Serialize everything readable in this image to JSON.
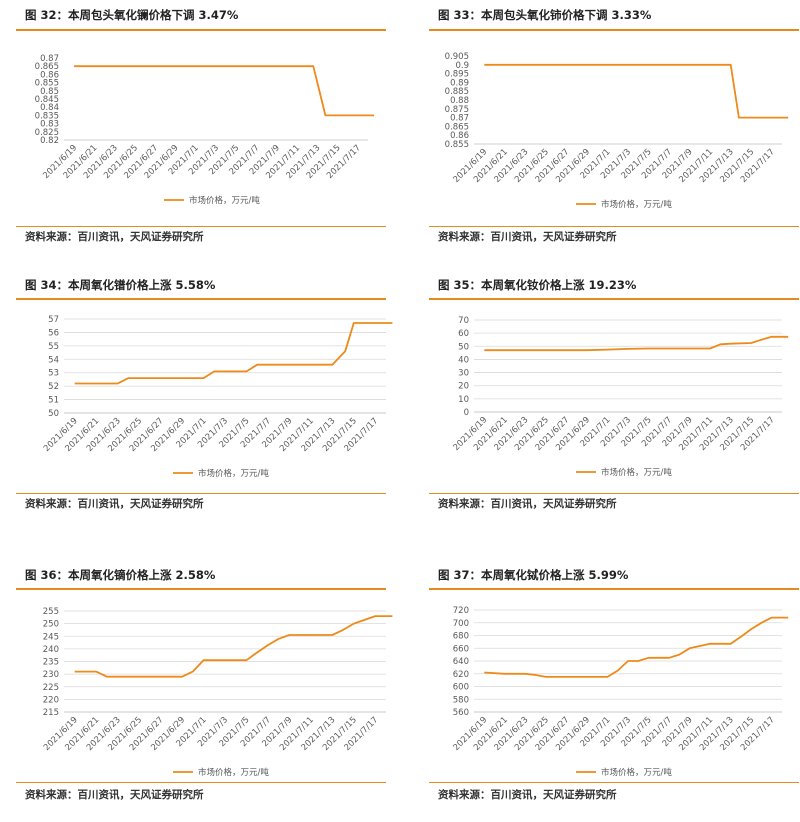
{
  "source_text": "资料来源：百川资讯，天风证券研究所",
  "legend_label": "市场价格，万元/吨",
  "line_color": "#ed8a1a",
  "rule_color": "#e58a1f",
  "grid_color": "#d9d9d9",
  "panels": [
    {
      "title": "图 32：本周包头氧化镧价格下调 3.47%",
      "chart_data": {
        "type": "line",
        "x": [
          "2021/6/19",
          "2021/6/21",
          "2021/6/23",
          "2021/6/25",
          "2021/6/27",
          "2021/6/29",
          "2021/7/1",
          "2021/7/3",
          "2021/7/5",
          "2021/7/7",
          "2021/7/9",
          "2021/7/11",
          "2021/7/13",
          "2021/7/15",
          "2021/7/17"
        ],
        "x_ticks": [
          "2021/6/19",
          "2021/6/21",
          "2021/6/23",
          "2021/6/25",
          "2021/6/27",
          "2021/6/29",
          "2021/7/1",
          "2021/7/3",
          "2021/7/5",
          "2021/7/7",
          "2021/7/9",
          "2021/7/11",
          "2021/7/13",
          "2021/7/15",
          "2021/7/17"
        ],
        "y_ticks": [
          "0.87",
          "0.865",
          "0.86",
          "0.855",
          "0.85",
          "0.845",
          "0.84",
          "0.835",
          "0.83",
          "0.825",
          "0.82"
        ],
        "ylim": [
          0.82,
          0.87
        ],
        "grid": false,
        "series": [
          {
            "name": "市场价格，万元/吨",
            "x": [
              0,
              1,
              2,
              3,
              4,
              5,
              6,
              7,
              8,
              9,
              10,
              11,
              11.8,
              12.4,
              13,
              14,
              14.8
            ],
            "values": [
              0.865,
              0.865,
              0.865,
              0.865,
              0.865,
              0.865,
              0.865,
              0.865,
              0.865,
              0.865,
              0.865,
              0.865,
              0.865,
              0.835,
              0.835,
              0.835,
              0.835
            ]
          }
        ]
      }
    },
    {
      "title": "图 33：本周包头氧化铈价格下调 3.33%",
      "chart_data": {
        "type": "line",
        "x": [
          "2021/6/19",
          "2021/6/21",
          "2021/6/23",
          "2021/6/25",
          "2021/6/27",
          "2021/6/29",
          "2021/7/1",
          "2021/7/3",
          "2021/7/5",
          "2021/7/7",
          "2021/7/9",
          "2021/7/11",
          "2021/7/13",
          "2021/7/15",
          "2021/7/17"
        ],
        "x_ticks": [
          "2021/6/19",
          "2021/6/21",
          "2021/6/23",
          "2021/6/25",
          "2021/6/27",
          "2021/6/29",
          "2021/7/1",
          "2021/7/3",
          "2021/7/5",
          "2021/7/7",
          "2021/7/9",
          "2021/7/11",
          "2021/7/13",
          "2021/7/15",
          "2021/7/17"
        ],
        "y_ticks": [
          "0.905",
          "0.9",
          "0.895",
          "0.89",
          "0.885",
          "0.88",
          "0.875",
          "0.87",
          "0.865",
          "0.86",
          "0.855"
        ],
        "ylim": [
          0.855,
          0.905
        ],
        "grid": false,
        "series": [
          {
            "name": "市场价格，万元/吨",
            "x": [
              0,
              1,
              2,
              3,
              4,
              5,
              6,
              7,
              8,
              9,
              10,
              11,
              12,
              12.4,
              13,
              14,
              14.8
            ],
            "values": [
              0.9,
              0.9,
              0.9,
              0.9,
              0.9,
              0.9,
              0.9,
              0.9,
              0.9,
              0.9,
              0.9,
              0.9,
              0.9,
              0.87,
              0.87,
              0.87,
              0.87
            ]
          }
        ]
      }
    },
    {
      "title": "图 34：本周氧化镨价格上涨 5.58%",
      "chart_data": {
        "type": "line",
        "x": [
          "2021/6/19",
          "2021/6/21",
          "2021/6/23",
          "2021/6/25",
          "2021/6/27",
          "2021/6/29",
          "2021/7/1",
          "2021/7/3",
          "2021/7/5",
          "2021/7/7",
          "2021/7/9",
          "2021/7/11",
          "2021/7/13",
          "2021/7/15",
          "2021/7/17"
        ],
        "x_ticks": [
          "2021/6/19",
          "2021/6/21",
          "2021/6/23",
          "2021/6/25",
          "2021/6/27",
          "2021/6/29",
          "2021/7/1",
          "2021/7/3",
          "2021/7/5",
          "2021/7/7",
          "2021/7/9",
          "2021/7/11",
          "2021/7/13",
          "2021/7/15",
          "2021/7/17"
        ],
        "y_ticks": [
          "57",
          "56",
          "55",
          "54",
          "53",
          "52",
          "51",
          "50"
        ],
        "ylim": [
          50,
          57
        ],
        "grid": true,
        "series": [
          {
            "name": "市场价格，万元/吨",
            "x": [
              0,
              1,
              2,
              2.5,
              3,
              4,
              5,
              6,
              6.5,
              7,
              8,
              8.5,
              9,
              10,
              11,
              12,
              12.6,
              13,
              13.5,
              14,
              14.8
            ],
            "values": [
              52.2,
              52.2,
              52.2,
              52.6,
              52.6,
              52.6,
              52.6,
              52.6,
              53.1,
              53.1,
              53.1,
              53.6,
              53.6,
              53.6,
              53.6,
              53.6,
              54.6,
              56.7,
              56.7,
              56.7,
              56.7
            ]
          }
        ]
      }
    },
    {
      "title": "图 35：本周氧化钕价格上涨 19.23%",
      "chart_data": {
        "type": "line",
        "x": [
          "2021/6/19",
          "2021/6/21",
          "2021/6/23",
          "2021/6/25",
          "2021/6/27",
          "2021/6/29",
          "2021/7/1",
          "2021/7/3",
          "2021/7/5",
          "2021/7/7",
          "2021/7/9",
          "2021/7/11",
          "2021/7/13",
          "2021/7/15",
          "2021/7/17"
        ],
        "x_ticks": [
          "2021/6/19",
          "2021/6/21",
          "2021/6/23",
          "2021/6/25",
          "2021/6/27",
          "2021/6/29",
          "2021/7/1",
          "2021/7/3",
          "2021/7/5",
          "2021/7/7",
          "2021/7/9",
          "2021/7/11",
          "2021/7/13",
          "2021/7/15",
          "2021/7/17"
        ],
        "y_ticks": [
          "70",
          "60",
          "50",
          "40",
          "30",
          "20",
          "10",
          "0"
        ],
        "ylim": [
          0,
          70
        ],
        "grid": true,
        "series": [
          {
            "name": "市场价格，万元/吨",
            "x": [
              0,
              1,
              2,
              3,
              4,
              5,
              6,
              7,
              8,
              9,
              10,
              11,
              11.5,
              12,
              13,
              13.5,
              14,
              14.8
            ],
            "values": [
              47,
              47,
              47,
              47,
              47,
              47,
              47.5,
              48,
              48.3,
              48.3,
              48.3,
              48.3,
              51.5,
              52,
              52.5,
              55,
              57.2,
              57.2
            ]
          }
        ]
      }
    },
    {
      "title": "图 36：本周氧化镝价格上涨 2.58%",
      "chart_data": {
        "type": "line",
        "x": [
          "2021/6/19",
          "2021/6/21",
          "2021/6/23",
          "2021/6/25",
          "2021/6/27",
          "2021/6/29",
          "2021/7/1",
          "2021/7/3",
          "2021/7/5",
          "2021/7/7",
          "2021/7/9",
          "2021/7/11",
          "2021/7/13",
          "2021/7/15",
          "2021/7/17"
        ],
        "x_ticks": [
          "2021/6/19",
          "2021/6/21",
          "2021/6/23",
          "2021/6/25",
          "2021/6/27",
          "2021/6/29",
          "2021/7/1",
          "2021/7/3",
          "2021/7/5",
          "2021/7/7",
          "2021/7/9",
          "2021/7/11",
          "2021/7/13",
          "2021/7/15",
          "2021/7/17"
        ],
        "y_ticks": [
          "255",
          "250",
          "245",
          "240",
          "235",
          "230",
          "225",
          "220",
          "215"
        ],
        "ylim": [
          215,
          255
        ],
        "grid": true,
        "series": [
          {
            "name": "市场价格，万元/吨",
            "x": [
              0,
              1,
              1.5,
              2,
              3,
              4,
              5,
              5.5,
              6,
              6.3,
              7,
              8,
              8.4,
              9,
              9.5,
              10,
              11,
              12,
              12.5,
              13,
              14,
              14.8
            ],
            "values": [
              231,
              231,
              229,
              229,
              229,
              229,
              229,
              231,
              235.5,
              235.5,
              235.5,
              235.5,
              238,
              241.5,
              244,
              245.5,
              245.5,
              245.5,
              247.5,
              250,
              253,
              253
            ]
          }
        ]
      }
    },
    {
      "title": "图 37：本周氧化铽价格上涨 5.99%",
      "chart_data": {
        "type": "line",
        "x": [
          "2021/6/19",
          "2021/6/21",
          "2021/6/23",
          "2021/6/25",
          "2021/6/27",
          "2021/6/29",
          "2021/7/1",
          "2021/7/3",
          "2021/7/5",
          "2021/7/7",
          "2021/7/9",
          "2021/7/11",
          "2021/7/13",
          "2021/7/15",
          "2021/7/17"
        ],
        "x_ticks": [
          "2021/6/19",
          "2021/6/21",
          "2021/6/23",
          "2021/6/25",
          "2021/6/27",
          "2021/6/29",
          "2021/7/1",
          "2021/7/3",
          "2021/7/5",
          "2021/7/7",
          "2021/7/9",
          "2021/7/11",
          "2021/7/13",
          "2021/7/15",
          "2021/7/17"
        ],
        "y_ticks": [
          "720",
          "700",
          "680",
          "660",
          "640",
          "620",
          "600",
          "580",
          "560"
        ],
        "ylim": [
          560,
          720
        ],
        "grid": true,
        "series": [
          {
            "name": "市场价格，万元/吨",
            "x": [
              0,
              1,
              2,
              2.5,
              3,
              4,
              5,
              5.5,
              6,
              6.5,
              7,
              7.5,
              8,
              8.5,
              9,
              9.5,
              10,
              11,
              12,
              12.5,
              13,
              13.5,
              14,
              14.8
            ],
            "values": [
              622,
              620,
              620,
              618,
              615,
              615,
              615,
              615,
              615,
              625,
              640,
              640,
              645,
              645,
              645,
              650,
              660,
              667,
              667,
              678,
              690,
              700,
              708,
              708
            ]
          }
        ]
      }
    }
  ]
}
